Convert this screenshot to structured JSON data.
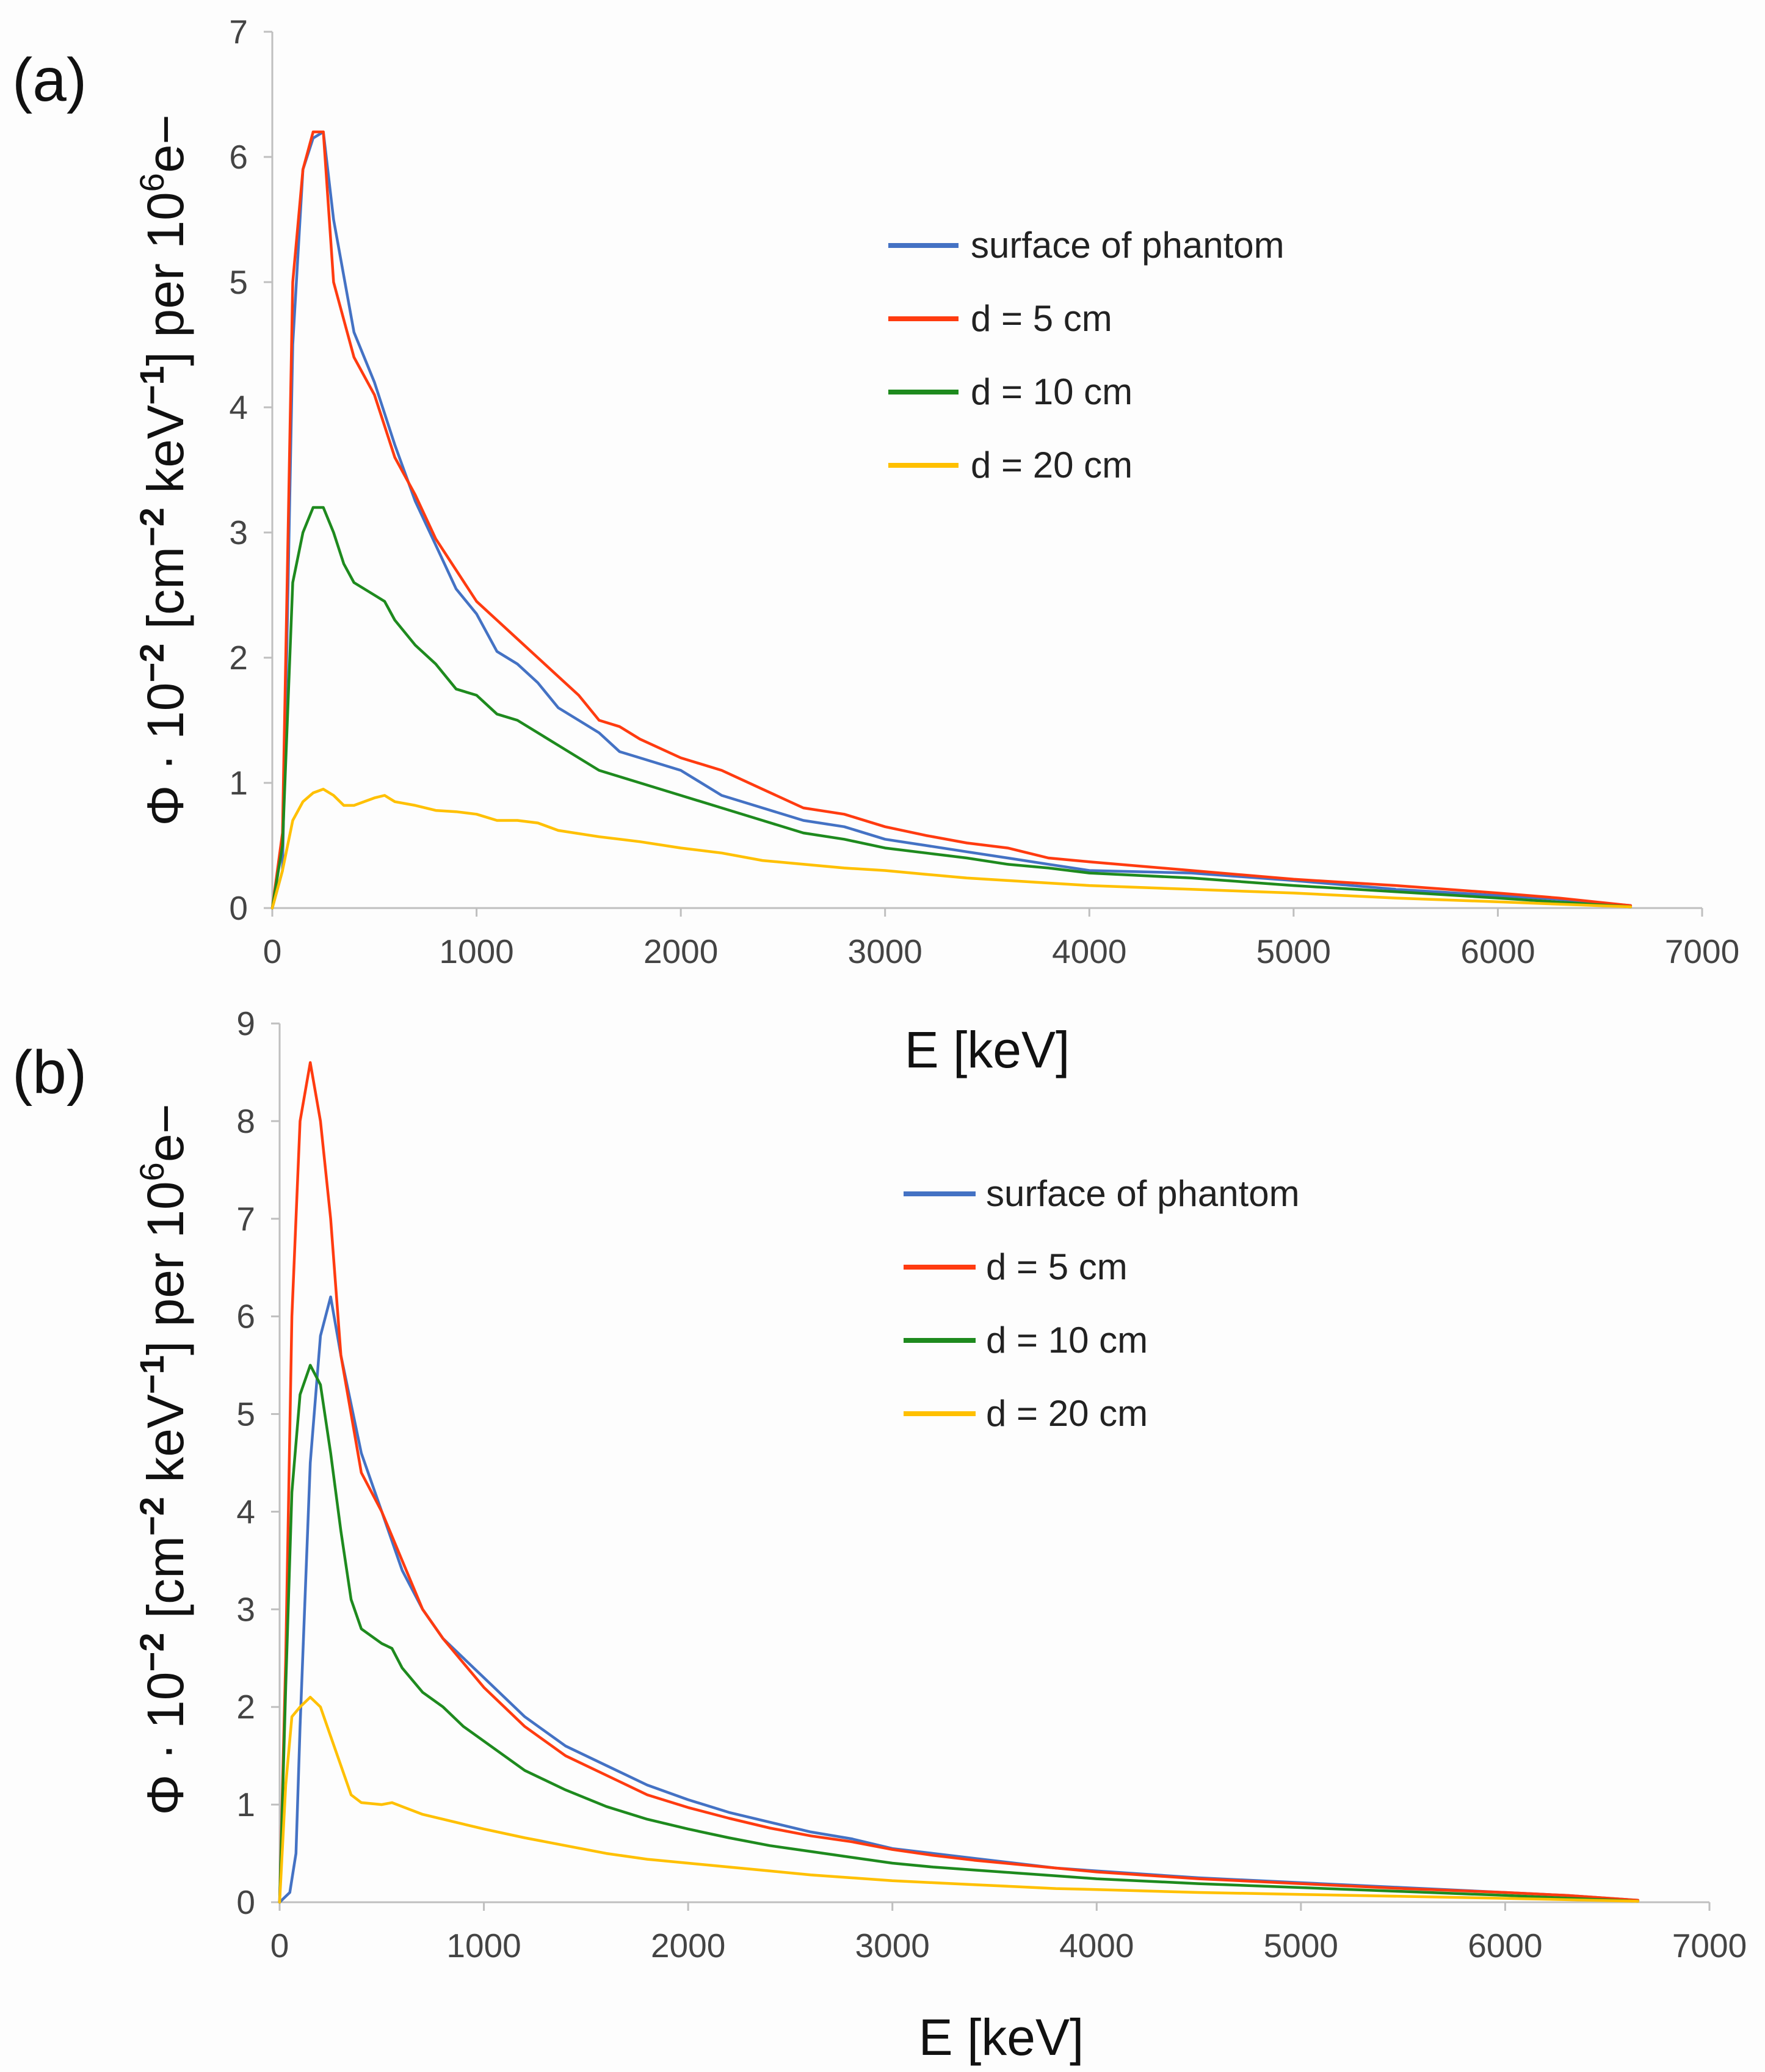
{
  "colors": {
    "surface": "#4472c4",
    "d5": "#ff3b10",
    "d10": "#1e8a1e",
    "d20": "#ffc000",
    "axis": "#bfbfbf",
    "text": "#444444"
  },
  "chart_data": [
    {
      "type": "line",
      "panel_label": "(a)",
      "xlabel": "E [keV]",
      "ylabel": {
        "phi": "Φ · 10",
        "exp1": "−2",
        "unit1": " [cm",
        "exp2": "−2",
        "unit2": " keV",
        "exp3": "−1",
        "unit3": "] per 10",
        "exp4": "6",
        "unit4": "e−"
      },
      "xlim": [
        0,
        7000
      ],
      "ylim": [
        0,
        7
      ],
      "xticks": [
        "0",
        "1000",
        "2000",
        "3000",
        "4000",
        "5000",
        "6000",
        "7000"
      ],
      "yticks": [
        "0",
        "1",
        "2",
        "3",
        "4",
        "5",
        "6",
        "7"
      ],
      "legend": [
        "surface of phantom",
        "d = 5 cm",
        "d = 10 cm",
        "d = 20 cm"
      ],
      "series": [
        {
          "name": "surface of phantom",
          "color": "#4472c4",
          "x": [
            0,
            50,
            100,
            150,
            200,
            250,
            300,
            400,
            500,
            600,
            700,
            800,
            900,
            1000,
            1100,
            1200,
            1300,
            1400,
            1500,
            1600,
            1700,
            1800,
            2000,
            2200,
            2400,
            2600,
            2800,
            3000,
            3200,
            3400,
            3600,
            3800,
            4000,
            4500,
            5000,
            5500,
            6000,
            6300,
            6650
          ],
          "y": [
            0,
            0.3,
            4.5,
            5.9,
            6.15,
            6.2,
            5.5,
            4.6,
            4.2,
            3.7,
            3.25,
            2.9,
            2.55,
            2.35,
            2.05,
            1.95,
            1.8,
            1.6,
            1.5,
            1.4,
            1.25,
            1.2,
            1.1,
            0.9,
            0.8,
            0.7,
            0.65,
            0.55,
            0.5,
            0.45,
            0.4,
            0.35,
            0.3,
            0.28,
            0.22,
            0.15,
            0.1,
            0.07,
            0.02
          ]
        },
        {
          "name": "d = 5 cm",
          "color": "#ff3b10",
          "x": [
            0,
            50,
            100,
            150,
            200,
            250,
            300,
            400,
            500,
            600,
            700,
            800,
            900,
            1000,
            1100,
            1200,
            1300,
            1400,
            1500,
            1600,
            1700,
            1800,
            2000,
            2200,
            2400,
            2600,
            2800,
            3000,
            3200,
            3400,
            3600,
            3800,
            4000,
            4500,
            5000,
            5500,
            6000,
            6300,
            6650
          ],
          "y": [
            0,
            0.6,
            5.0,
            5.9,
            6.2,
            6.2,
            5.0,
            4.4,
            4.1,
            3.6,
            3.3,
            2.95,
            2.7,
            2.45,
            2.3,
            2.15,
            2.0,
            1.85,
            1.7,
            1.5,
            1.45,
            1.35,
            1.2,
            1.1,
            0.95,
            0.8,
            0.75,
            0.65,
            0.58,
            0.52,
            0.48,
            0.4,
            0.37,
            0.3,
            0.23,
            0.18,
            0.12,
            0.08,
            0.02
          ]
        },
        {
          "name": "d = 10 cm",
          "color": "#1e8a1e",
          "x": [
            0,
            50,
            100,
            150,
            200,
            250,
            300,
            350,
            400,
            500,
            550,
            600,
            700,
            800,
            900,
            1000,
            1100,
            1200,
            1400,
            1600,
            1800,
            2000,
            2200,
            2400,
            2600,
            2800,
            3000,
            3200,
            3400,
            3600,
            3800,
            4000,
            4500,
            5000,
            5500,
            6000,
            6650
          ],
          "y": [
            0,
            0.5,
            2.6,
            3.0,
            3.2,
            3.2,
            3.0,
            2.75,
            2.6,
            2.5,
            2.45,
            2.3,
            2.1,
            1.95,
            1.75,
            1.7,
            1.55,
            1.5,
            1.3,
            1.1,
            1.0,
            0.9,
            0.8,
            0.7,
            0.6,
            0.55,
            0.48,
            0.44,
            0.4,
            0.35,
            0.32,
            0.28,
            0.24,
            0.18,
            0.13,
            0.08,
            0.01
          ]
        },
        {
          "name": "d = 20 cm",
          "color": "#ffc000",
          "x": [
            0,
            50,
            100,
            150,
            200,
            250,
            300,
            350,
            400,
            500,
            550,
            600,
            700,
            800,
            900,
            1000,
            1100,
            1200,
            1300,
            1400,
            1600,
            1800,
            2000,
            2200,
            2400,
            2600,
            2800,
            3000,
            3200,
            3400,
            3600,
            3800,
            4000,
            4500,
            5000,
            5500,
            6000,
            6650
          ],
          "y": [
            0,
            0.3,
            0.7,
            0.85,
            0.92,
            0.95,
            0.9,
            0.82,
            0.82,
            0.88,
            0.9,
            0.85,
            0.82,
            0.78,
            0.77,
            0.75,
            0.7,
            0.7,
            0.68,
            0.62,
            0.57,
            0.53,
            0.48,
            0.44,
            0.38,
            0.35,
            0.32,
            0.3,
            0.27,
            0.24,
            0.22,
            0.2,
            0.18,
            0.15,
            0.12,
            0.08,
            0.05,
            0.01
          ]
        }
      ]
    },
    {
      "type": "line",
      "panel_label": "(b)",
      "xlabel": "E [keV]",
      "ylabel": {
        "phi": "Φ · 10",
        "exp1": "−2",
        "unit1": " [cm",
        "exp2": "−2",
        "unit2": " keV",
        "exp3": "−1",
        "unit3": "] per 10",
        "exp4": "6",
        "unit4": "e−"
      },
      "xlim": [
        0,
        7000
      ],
      "ylim": [
        0,
        9
      ],
      "xticks": [
        "0",
        "1000",
        "2000",
        "3000",
        "4000",
        "5000",
        "6000",
        "7000"
      ],
      "yticks": [
        "0",
        "1",
        "2",
        "3",
        "4",
        "5",
        "6",
        "7",
        "8",
        "9"
      ],
      "legend": [
        "surface of phantom",
        "d = 5 cm",
        "d = 10 cm",
        "d = 20 cm"
      ],
      "series": [
        {
          "name": "surface of phantom",
          "color": "#4472c4",
          "x": [
            0,
            50,
            80,
            100,
            150,
            200,
            250,
            300,
            400,
            500,
            600,
            700,
            800,
            900,
            1000,
            1200,
            1400,
            1600,
            1800,
            2000,
            2200,
            2400,
            2600,
            2800,
            3000,
            3200,
            3400,
            3600,
            3800,
            4000,
            4500,
            5000,
            5500,
            6000,
            6300,
            6650
          ],
          "y": [
            0,
            0.1,
            0.5,
            1.8,
            4.5,
            5.8,
            6.2,
            5.6,
            4.6,
            4.0,
            3.4,
            3.0,
            2.7,
            2.5,
            2.3,
            1.9,
            1.6,
            1.4,
            1.2,
            1.05,
            0.92,
            0.82,
            0.72,
            0.65,
            0.55,
            0.5,
            0.45,
            0.4,
            0.35,
            0.32,
            0.25,
            0.2,
            0.15,
            0.1,
            0.07,
            0.02
          ]
        },
        {
          "name": "d = 5 cm",
          "color": "#ff3b10",
          "x": [
            0,
            30,
            60,
            100,
            150,
            200,
            250,
            300,
            400,
            500,
            600,
            700,
            800,
            900,
            1000,
            1200,
            1400,
            1600,
            1800,
            2000,
            2200,
            2400,
            2600,
            2800,
            3000,
            3200,
            3400,
            3600,
            3800,
            4000,
            4500,
            5000,
            5500,
            6000,
            6300,
            6650
          ],
          "y": [
            0,
            2.5,
            6.0,
            8.0,
            8.6,
            8.0,
            7.0,
            5.6,
            4.4,
            4.0,
            3.5,
            3.0,
            2.7,
            2.45,
            2.2,
            1.8,
            1.5,
            1.3,
            1.1,
            0.97,
            0.86,
            0.76,
            0.68,
            0.62,
            0.54,
            0.48,
            0.43,
            0.39,
            0.35,
            0.31,
            0.24,
            0.19,
            0.14,
            0.1,
            0.07,
            0.02
          ]
        },
        {
          "name": "d = 10 cm",
          "color": "#1e8a1e",
          "x": [
            0,
            30,
            60,
            100,
            150,
            200,
            250,
            300,
            350,
            400,
            500,
            550,
            600,
            700,
            800,
            900,
            1000,
            1200,
            1400,
            1600,
            1800,
            2000,
            2200,
            2400,
            2600,
            2800,
            3000,
            3200,
            3400,
            3600,
            3800,
            4000,
            4500,
            5000,
            5500,
            6000,
            6650
          ],
          "y": [
            0,
            2.2,
            4.2,
            5.2,
            5.5,
            5.3,
            4.6,
            3.8,
            3.1,
            2.8,
            2.65,
            2.6,
            2.4,
            2.15,
            2.0,
            1.8,
            1.65,
            1.35,
            1.15,
            0.98,
            0.85,
            0.75,
            0.66,
            0.58,
            0.52,
            0.46,
            0.4,
            0.36,
            0.33,
            0.3,
            0.27,
            0.24,
            0.19,
            0.15,
            0.11,
            0.07,
            0.01
          ]
        },
        {
          "name": "d = 20 cm",
          "color": "#ffc000",
          "x": [
            0,
            30,
            60,
            100,
            150,
            200,
            250,
            300,
            350,
            400,
            500,
            550,
            600,
            700,
            800,
            900,
            1000,
            1200,
            1400,
            1600,
            1800,
            2000,
            2200,
            2400,
            2600,
            2800,
            3000,
            3200,
            3400,
            3600,
            3800,
            4000,
            4500,
            5000,
            5500,
            6000,
            6650
          ],
          "y": [
            0,
            1.2,
            1.9,
            2.0,
            2.1,
            2.0,
            1.7,
            1.4,
            1.1,
            1.02,
            1.0,
            1.02,
            0.98,
            0.9,
            0.85,
            0.8,
            0.75,
            0.66,
            0.58,
            0.5,
            0.44,
            0.4,
            0.36,
            0.32,
            0.28,
            0.25,
            0.22,
            0.2,
            0.18,
            0.16,
            0.14,
            0.13,
            0.1,
            0.08,
            0.06,
            0.04,
            0.01
          ]
        }
      ]
    }
  ]
}
